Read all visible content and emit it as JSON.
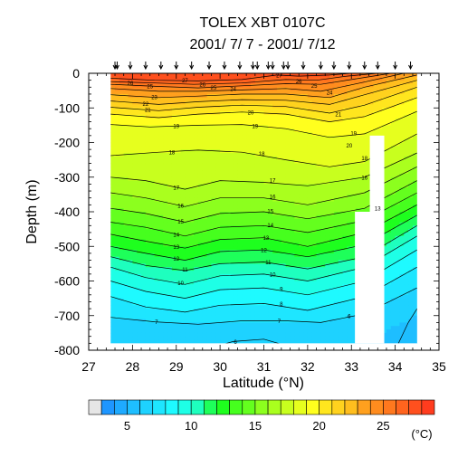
{
  "chart_data": {
    "type": "heatmap",
    "title": "TOLEX XBT 0107C",
    "subtitle": "2001/ 7/ 7 - 2001/ 7/12",
    "xlabel": "Latitude (°N)",
    "ylabel": "Depth (m)",
    "xlim": [
      27,
      35
    ],
    "ylim": [
      -800,
      0
    ],
    "x_ticks": [
      "27",
      "28",
      "29",
      "30",
      "31",
      "32",
      "33",
      "34",
      "35"
    ],
    "y_ticks": [
      "0",
      "-100",
      "-200",
      "-300",
      "-400",
      "-500",
      "-600",
      "-700",
      "-800"
    ],
    "colorbar": {
      "ticks": [
        "5",
        "10",
        "15",
        "20",
        "25"
      ],
      "unit": "(°C)",
      "min": 2,
      "max": 29,
      "step": 1,
      "colors": [
        "#e6e6e6",
        "#1e96ff",
        "#1eaaff",
        "#1ebeff",
        "#1ed2ff",
        "#1ee6ff",
        "#1efaff",
        "#1effe6",
        "#1effbe",
        "#1eff5a",
        "#1eff1e",
        "#46ff1e",
        "#64ff1e",
        "#8cff1e",
        "#aaff1e",
        "#c8ff1e",
        "#e6ff1e",
        "#ffff1e",
        "#ffe61e",
        "#ffd21e",
        "#ffbe1e",
        "#ffa01e",
        "#ff8c1e",
        "#ff781e",
        "#ff641e",
        "#ff501e",
        "#ff3c1e"
      ]
    },
    "station_latitudes": [
      27.6,
      27.65,
      27.95,
      28.3,
      28.65,
      29.0,
      29.35,
      29.75,
      30.1,
      30.45,
      30.75,
      30.85,
      31.1,
      31.2,
      31.45,
      31.55,
      31.9,
      32.3,
      32.6,
      32.95,
      33.3,
      33.6,
      34.0,
      34.35
    ],
    "contour_levels": [
      {
        "value": 27,
        "depth_by_lat": [
          [
            27.5,
            -14
          ],
          [
            28.5,
            -20
          ],
          [
            29.5,
            -22
          ],
          [
            30.5,
            -18
          ],
          [
            31.3,
            -5
          ],
          [
            31.8,
            -8
          ],
          [
            32.5,
            -5
          ],
          [
            33.0,
            0
          ]
        ]
      },
      {
        "value": 26,
        "depth_by_lat": [
          [
            27.5,
            -24
          ],
          [
            28.5,
            -28
          ],
          [
            29.4,
            -32
          ],
          [
            30.5,
            -28
          ],
          [
            31.5,
            -18
          ],
          [
            32.2,
            -20
          ],
          [
            32.9,
            -8
          ],
          [
            33.6,
            0
          ]
        ]
      },
      {
        "value": 25,
        "depth_by_lat": [
          [
            27.5,
            -32
          ],
          [
            28.6,
            -38
          ],
          [
            29.5,
            -42
          ],
          [
            30.5,
            -36
          ],
          [
            31.5,
            -30
          ],
          [
            32.3,
            -32
          ],
          [
            33.0,
            -18
          ],
          [
            33.9,
            0
          ]
        ]
      },
      {
        "value": 24,
        "depth_by_lat": [
          [
            27.5,
            -44
          ],
          [
            28.6,
            -52
          ],
          [
            29.5,
            -52
          ],
          [
            30.5,
            -48
          ],
          [
            31.5,
            -44
          ],
          [
            32.3,
            -52
          ],
          [
            33.2,
            -28
          ],
          [
            34.2,
            0
          ]
        ]
      },
      {
        "value": 23,
        "depth_by_lat": [
          [
            27.5,
            -62
          ],
          [
            28.6,
            -70
          ],
          [
            29.5,
            -66
          ],
          [
            30.5,
            -60
          ],
          [
            31.5,
            -60
          ],
          [
            32.5,
            -70
          ],
          [
            33.3,
            -40
          ],
          [
            34.5,
            -5
          ]
        ]
      },
      {
        "value": 22,
        "depth_by_lat": [
          [
            27.5,
            -80
          ],
          [
            28.6,
            -90
          ],
          [
            29.5,
            -82
          ],
          [
            30.5,
            -76
          ],
          [
            31.5,
            -78
          ],
          [
            32.5,
            -90
          ],
          [
            33.3,
            -62
          ],
          [
            34.5,
            -20
          ]
        ]
      },
      {
        "value": 21,
        "depth_by_lat": [
          [
            27.5,
            -98
          ],
          [
            28.6,
            -108
          ],
          [
            29.5,
            -98
          ],
          [
            30.5,
            -92
          ],
          [
            31.5,
            -96
          ],
          [
            32.5,
            -115
          ],
          [
            33.3,
            -92
          ],
          [
            34.5,
            -40
          ]
        ]
      },
      {
        "value": 20,
        "depth_by_lat": [
          [
            27.5,
            -118
          ],
          [
            28.6,
            -128
          ],
          [
            29.5,
            -118
          ],
          [
            30.5,
            -112
          ],
          [
            31.5,
            -118
          ],
          [
            32.5,
            -140
          ],
          [
            33.3,
            -125
          ],
          [
            34.5,
            -70
          ]
        ]
      },
      {
        "value": 19,
        "depth_by_lat": [
          [
            27.5,
            -148
          ],
          [
            28.4,
            -155
          ],
          [
            29.5,
            -150
          ],
          [
            30.5,
            -148
          ],
          [
            31.5,
            -160
          ],
          [
            32.5,
            -185
          ],
          [
            33.3,
            -175
          ],
          [
            34.5,
            -110
          ]
        ]
      },
      {
        "value": 18,
        "depth_by_lat": [
          [
            27.5,
            -238
          ],
          [
            28.6,
            -228
          ],
          [
            29.5,
            -222
          ],
          [
            30.5,
            -228
          ],
          [
            31.5,
            -250
          ],
          [
            32.5,
            -270
          ],
          [
            33.3,
            -255
          ],
          [
            34.5,
            -175
          ]
        ]
      },
      {
        "value": 17,
        "depth_by_lat": [
          [
            27.5,
            -300
          ],
          [
            28.3,
            -310
          ],
          [
            29.2,
            -335
          ],
          [
            30.0,
            -310
          ],
          [
            31.0,
            -315
          ],
          [
            32.0,
            -325
          ],
          [
            33.3,
            -300
          ],
          [
            34.5,
            -230
          ]
        ]
      },
      {
        "value": 16,
        "depth_by_lat": [
          [
            27.5,
            -345
          ],
          [
            28.3,
            -360
          ],
          [
            29.2,
            -385
          ],
          [
            30.0,
            -360
          ],
          [
            31.0,
            -360
          ],
          [
            32.0,
            -380
          ],
          [
            33.3,
            -345
          ],
          [
            34.5,
            -270
          ]
        ]
      },
      {
        "value": 15,
        "depth_by_lat": [
          [
            27.5,
            -390
          ],
          [
            28.3,
            -405
          ],
          [
            29.2,
            -430
          ],
          [
            30.0,
            -405
          ],
          [
            31.0,
            -400
          ],
          [
            32.0,
            -420
          ],
          [
            33.3,
            -390
          ],
          [
            34.5,
            -310
          ]
        ]
      },
      {
        "value": 14,
        "depth_by_lat": [
          [
            27.5,
            -430
          ],
          [
            28.3,
            -445
          ],
          [
            29.2,
            -470
          ],
          [
            30.0,
            -445
          ],
          [
            31.0,
            -440
          ],
          [
            32.0,
            -460
          ],
          [
            33.3,
            -425
          ],
          [
            34.5,
            -345
          ]
        ]
      },
      {
        "value": 13,
        "depth_by_lat": [
          [
            27.5,
            -465
          ],
          [
            28.3,
            -485
          ],
          [
            29.2,
            -505
          ],
          [
            30.0,
            -480
          ],
          [
            31.0,
            -475
          ],
          [
            32.0,
            -500
          ],
          [
            33.3,
            -460
          ],
          [
            34.5,
            -380
          ]
        ]
      },
      {
        "value": 12,
        "depth_by_lat": [
          [
            27.5,
            -500
          ],
          [
            28.3,
            -520
          ],
          [
            29.2,
            -540
          ],
          [
            30.0,
            -515
          ],
          [
            31.0,
            -510
          ],
          [
            32.0,
            -530
          ],
          [
            33.3,
            -495
          ],
          [
            34.5,
            -410
          ]
        ]
      },
      {
        "value": 11,
        "depth_by_lat": [
          [
            27.5,
            -530
          ],
          [
            28.3,
            -555
          ],
          [
            29.2,
            -570
          ],
          [
            30.0,
            -550
          ],
          [
            31.0,
            -545
          ],
          [
            32.0,
            -565
          ],
          [
            33.3,
            -530
          ],
          [
            34.5,
            -440
          ]
        ]
      },
      {
        "value": 10,
        "depth_by_lat": [
          [
            27.5,
            -560
          ],
          [
            28.3,
            -590
          ],
          [
            29.2,
            -610
          ],
          [
            30.0,
            -585
          ],
          [
            31.0,
            -580
          ],
          [
            32.0,
            -600
          ],
          [
            33.3,
            -560
          ],
          [
            34.5,
            -470
          ]
        ]
      },
      {
        "value": 9,
        "depth_by_lat": [
          [
            27.5,
            -600
          ],
          [
            28.3,
            -630
          ],
          [
            29.2,
            -650
          ],
          [
            30.0,
            -625
          ],
          [
            31.0,
            -620
          ],
          [
            32.0,
            -640
          ],
          [
            33.3,
            -600
          ],
          [
            34.5,
            -510
          ]
        ]
      },
      {
        "value": 8,
        "depth_by_lat": [
          [
            27.5,
            -645
          ],
          [
            28.3,
            -675
          ],
          [
            29.2,
            -690
          ],
          [
            30.0,
            -670
          ],
          [
            31.0,
            -665
          ],
          [
            32.0,
            -685
          ],
          [
            33.3,
            -645
          ],
          [
            34.5,
            -560
          ]
        ]
      },
      {
        "value": 7,
        "depth_by_lat": [
          [
            27.5,
            -705
          ],
          [
            28.5,
            -718
          ],
          [
            29.5,
            -725
          ],
          [
            30.5,
            -715
          ],
          [
            31.5,
            -715
          ],
          [
            32.3,
            -720
          ],
          [
            33.3,
            -695
          ],
          [
            34.5,
            -620
          ]
        ]
      },
      {
        "value": 6,
        "depth_by_lat": [
          [
            29.6,
            -800
          ],
          [
            30.3,
            -775
          ],
          [
            31.0,
            -768
          ],
          [
            31.6,
            -790
          ],
          [
            32.2,
            -800
          ]
        ]
      },
      {
        "value": 5,
        "depth_by_lat": [
          [
            34.0,
            -800
          ],
          [
            34.3,
            -720
          ],
          [
            34.5,
            -680
          ]
        ]
      }
    ],
    "blank_regions": [
      {
        "lat": [
          27,
          27.5
        ],
        "depth": [
          0,
          -780
        ]
      },
      {
        "lat": [
          34.5,
          35
        ],
        "depth": [
          0,
          -780
        ]
      },
      {
        "lat": [
          33.08,
          33.75
        ],
        "depth": [
          -400,
          -780
        ]
      },
      {
        "lat": [
          33.42,
          33.75
        ],
        "depth": [
          -180,
          -400
        ]
      }
    ],
    "label_spots": [
      {
        "text": "27",
        "lat": 29.2,
        "depth": -20
      },
      {
        "text": "26",
        "lat": 29.6,
        "depth": -32
      },
      {
        "text": "25",
        "lat": 29.85,
        "depth": -40
      },
      {
        "text": "24",
        "lat": 30.3,
        "depth": -45
      },
      {
        "text": "27",
        "lat": 31.35,
        "depth": -5
      },
      {
        "text": "26",
        "lat": 31.8,
        "depth": -22
      },
      {
        "text": "25",
        "lat": 32.15,
        "depth": -35
      },
      {
        "text": "24",
        "lat": 32.5,
        "depth": -55
      },
      {
        "text": "26",
        "lat": 27.95,
        "depth": -28
      },
      {
        "text": "25",
        "lat": 28.4,
        "depth": -37
      },
      {
        "text": "23",
        "lat": 28.5,
        "depth": -68
      },
      {
        "text": "22",
        "lat": 28.3,
        "depth": -88
      },
      {
        "text": "21",
        "lat": 28.35,
        "depth": -105
      },
      {
        "text": "20",
        "lat": 30.7,
        "depth": -112
      },
      {
        "text": "21",
        "lat": 32.7,
        "depth": -118
      },
      {
        "text": "19",
        "lat": 29.0,
        "depth": -152
      },
      {
        "text": "19",
        "lat": 30.8,
        "depth": -152
      },
      {
        "text": "18",
        "lat": 28.9,
        "depth": -228
      },
      {
        "text": "18",
        "lat": 30.95,
        "depth": -232
      },
      {
        "text": "17",
        "lat": 29.0,
        "depth": -330
      },
      {
        "text": "17",
        "lat": 31.2,
        "depth": -308
      },
      {
        "text": "16",
        "lat": 29.1,
        "depth": -382
      },
      {
        "text": "16",
        "lat": 31.2,
        "depth": -355
      },
      {
        "text": "15",
        "lat": 29.1,
        "depth": -428
      },
      {
        "text": "15",
        "lat": 31.15,
        "depth": -398
      },
      {
        "text": "14",
        "lat": 29.0,
        "depth": -466
      },
      {
        "text": "14",
        "lat": 31.15,
        "depth": -438
      },
      {
        "text": "13",
        "lat": 29.0,
        "depth": -500
      },
      {
        "text": "13",
        "lat": 31.05,
        "depth": -475
      },
      {
        "text": "12",
        "lat": 29.0,
        "depth": -535
      },
      {
        "text": "12",
        "lat": 31.0,
        "depth": -510
      },
      {
        "text": "11",
        "lat": 29.2,
        "depth": -566
      },
      {
        "text": "11",
        "lat": 31.1,
        "depth": -545
      },
      {
        "text": "10",
        "lat": 29.1,
        "depth": -605
      },
      {
        "text": "10",
        "lat": 31.2,
        "depth": -580
      },
      {
        "text": "9",
        "lat": 31.4,
        "depth": -622
      },
      {
        "text": "8",
        "lat": 31.4,
        "depth": -666
      },
      {
        "text": "7",
        "lat": 28.55,
        "depth": -718
      },
      {
        "text": "7",
        "lat": 31.35,
        "depth": -715
      },
      {
        "text": "6",
        "lat": 30.35,
        "depth": -775
      },
      {
        "text": "6",
        "lat": 32.95,
        "depth": -700
      },
      {
        "text": "20",
        "lat": 32.95,
        "depth": -208
      },
      {
        "text": "19",
        "lat": 33.05,
        "depth": -172
      },
      {
        "text": "18",
        "lat": 33.3,
        "depth": -245
      },
      {
        "text": "16",
        "lat": 33.3,
        "depth": -300
      },
      {
        "text": "13",
        "lat": 33.6,
        "depth": -390
      }
    ]
  }
}
